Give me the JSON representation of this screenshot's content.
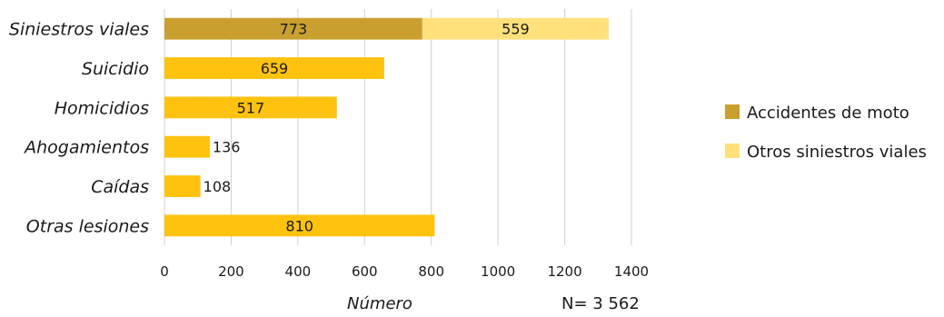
{
  "chart_data": {
    "type": "bar",
    "orientation": "horizontal",
    "stacked": true,
    "categories": [
      "Siniestros viales",
      "Suicidio",
      "Homicidios",
      "Ahogamientos",
      "Caídas",
      "Otras lesiones"
    ],
    "series": [
      {
        "name": "Accidentes de moto",
        "values": [
          773,
          null,
          null,
          null,
          null,
          null
        ],
        "color": "#C9A02F"
      },
      {
        "name": "Otros siniestros viales",
        "values": [
          559,
          null,
          null,
          null,
          null,
          null
        ],
        "color": "#FFE07A"
      },
      {
        "values": [
          null,
          659,
          517,
          136,
          108,
          810
        ],
        "color": "#FFC20E"
      }
    ],
    "xlabel": "Número",
    "xlim": [
      0,
      1400
    ],
    "xticks": [
      0,
      200,
      400,
      600,
      800,
      1000,
      1200,
      1400
    ],
    "grid": true,
    "legend_position": "right",
    "note": "N= 3 562"
  }
}
